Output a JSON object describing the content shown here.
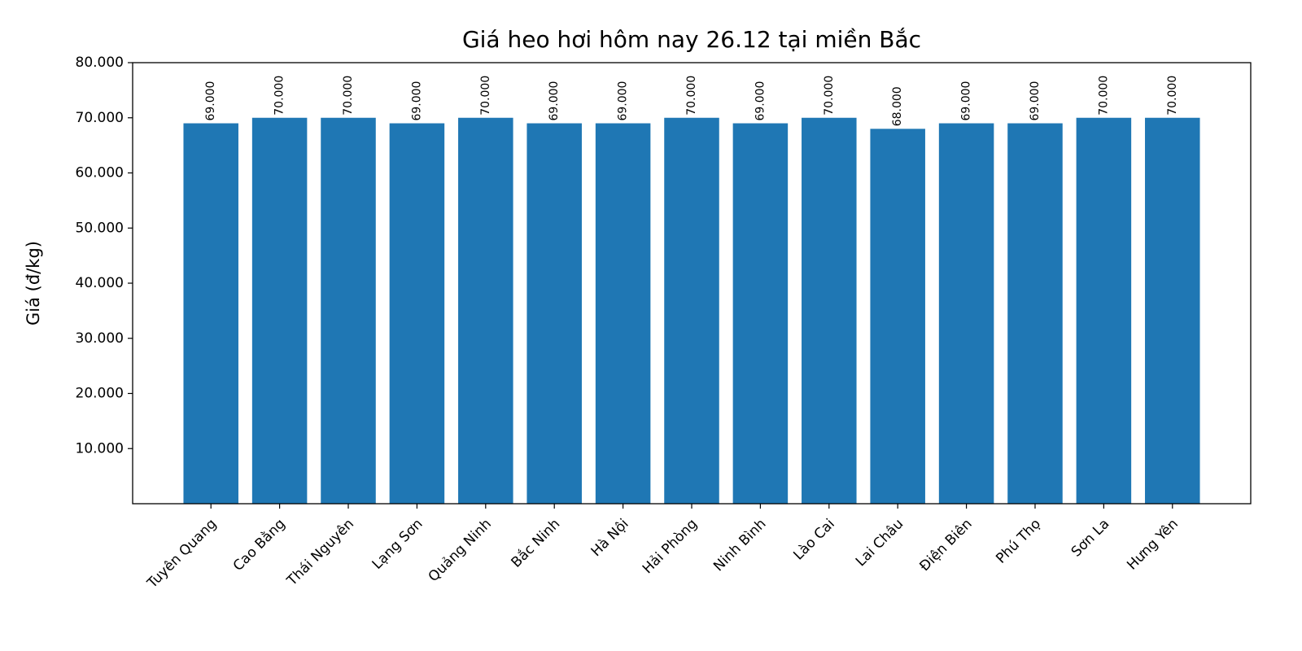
{
  "chart_data": {
    "type": "bar",
    "title": "Giá heo hơi hôm nay 26.12 tại miền Bắc",
    "y_label": "Giá (đ/kg)",
    "categories": [
      "Tuyên Quang",
      "Cao Bằng",
      "Thái Nguyên",
      "Lạng Sơn",
      "Quảng Ninh",
      "Bắc Ninh",
      "Hà Nội",
      "Hải Phòng",
      "Ninh Bình",
      "Lào Cai",
      "Lai Châu",
      "Điện Biên",
      "Phú Thọ",
      "Sơn La",
      "Hưng Yên"
    ],
    "values": [
      69000,
      70000,
      70000,
      69000,
      70000,
      69000,
      69000,
      70000,
      69000,
      70000,
      68000,
      69000,
      69000,
      70000,
      70000
    ],
    "value_labels": [
      "69.000",
      "70.000",
      "70.000",
      "69.000",
      "70.000",
      "69.000",
      "69.000",
      "70.000",
      "69.000",
      "70.000",
      "68.000",
      "69.000",
      "69.000",
      "70.000",
      "70.000"
    ],
    "color": "#1f77b4",
    "ylim": [
      0,
      80000
    ],
    "yticks": [
      {
        "value": 10000,
        "label": "10.000"
      },
      {
        "value": 20000,
        "label": "20.000"
      },
      {
        "value": 30000,
        "label": "30.000"
      },
      {
        "value": 40000,
        "label": "40.000"
      },
      {
        "value": 50000,
        "label": "50.000"
      },
      {
        "value": 60000,
        "label": "60.000"
      },
      {
        "value": 70000,
        "label": "70.000"
      },
      {
        "value": 80000,
        "label": "80.000"
      }
    ],
    "grid": false
  }
}
